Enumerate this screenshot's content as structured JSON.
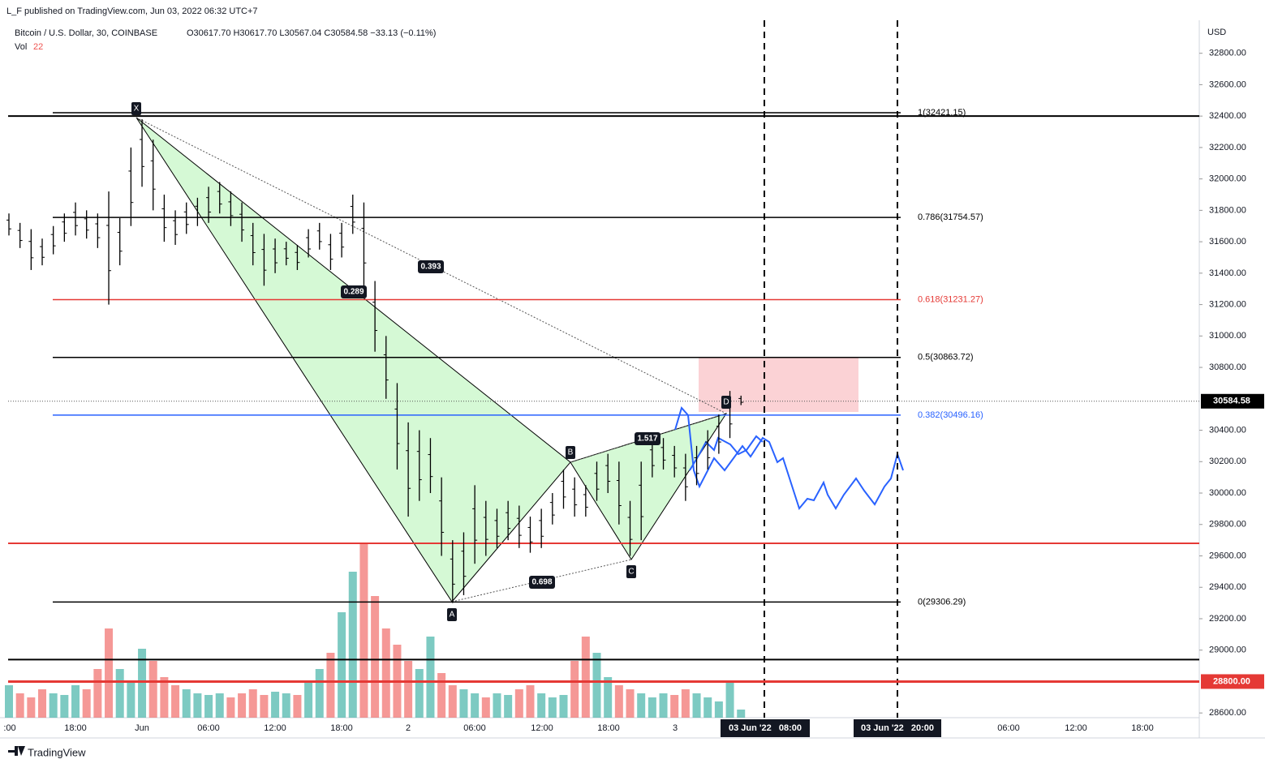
{
  "header": {
    "published": "L_F published on TradingView.com, Jun 03, 2022 06:32 UTC+7",
    "brand": "TradingView"
  },
  "legend": {
    "symbol": "Bitcoin / U.S. Dollar, 30, COINBASE",
    "ohlc": "O30617.70 H30617.70 L30567.04 C30584.58 −33.13 (−0.11%)",
    "vol_label": "Vol",
    "vol_value": "22"
  },
  "chart_data": {
    "type": "ohlc-bars",
    "currency": "USD",
    "ylim": [
      28570,
      33010
    ],
    "yticks": [
      {
        "value": 28600,
        "label": "28600.00"
      },
      {
        "value": 29000,
        "label": "29000.00"
      },
      {
        "value": 29200,
        "label": "29200.00"
      },
      {
        "value": 29400,
        "label": "29400.00"
      },
      {
        "value": 29600,
        "label": "29600.00"
      },
      {
        "value": 29800,
        "label": "29800.00"
      },
      {
        "value": 30000,
        "label": "30000.00"
      },
      {
        "value": 30200,
        "label": "30200.00"
      },
      {
        "value": 30400,
        "label": "30400.00"
      },
      {
        "value": 30800,
        "label": "30800.00"
      },
      {
        "value": 31000,
        "label": "31000.00"
      },
      {
        "value": 31200,
        "label": "31200.00"
      },
      {
        "value": 31400,
        "label": "31400.00"
      },
      {
        "value": 31600,
        "label": "31600.00"
      },
      {
        "value": 31800,
        "label": "31800.00"
      },
      {
        "value": 32000,
        "label": "32000.00"
      },
      {
        "value": 32200,
        "label": "32200.00"
      },
      {
        "value": 32400,
        "label": "32400.00"
      },
      {
        "value": 32600,
        "label": "32600.00"
      },
      {
        "value": 32800,
        "label": "32800.00"
      }
    ],
    "x_tick_labels": [
      ":00",
      "18:00",
      "Jun",
      "06:00",
      "12:00",
      "18:00",
      "2",
      "06:00",
      "12:00",
      "18:00",
      "3",
      "06:00",
      "12:00",
      "18:00"
    ],
    "highlighted_times": [
      "03 Jun '22   08:00",
      "03 Jun '22   20:00"
    ],
    "bar_color": "#000000",
    "up_color": "#26a69a",
    "down_color": "#ef5350",
    "highs": [
      31780,
      31720,
      31680,
      31620,
      31700,
      31780,
      31850,
      31800,
      31780,
      31920,
      31750,
      32200,
      32380,
      32250,
      31900,
      31800,
      31850,
      31880,
      31950,
      31980,
      31920,
      31850,
      31720,
      31650,
      31620,
      31600,
      31580,
      31680,
      31720,
      31650,
      31720,
      31900,
      31850,
      31350,
      31000,
      30700,
      30450,
      30400,
      30350,
      30100,
      29700,
      29750,
      30050,
      29950,
      29900,
      29950,
      29920,
      29850,
      29900,
      30000,
      30150,
      30100,
      30050,
      30200,
      30250,
      30200,
      29950,
      30200,
      30350,
      30350,
      30300,
      30250,
      30300,
      30400,
      30500,
      30650,
      30620
    ],
    "lows": [
      31640,
      31560,
      31420,
      31450,
      31520,
      31600,
      31640,
      31620,
      31560,
      31200,
      31450,
      31700,
      31950,
      31800,
      31600,
      31580,
      31650,
      31700,
      31720,
      31780,
      31700,
      31600,
      31450,
      31320,
      31400,
      31450,
      31420,
      31500,
      31550,
      31420,
      31500,
      31650,
      31300,
      30900,
      30600,
      30150,
      29850,
      29950,
      30000,
      29600,
      29300,
      29350,
      29550,
      29600,
      29650,
      29700,
      29650,
      29620,
      29650,
      29800,
      29900,
      29850,
      29850,
      29950,
      30000,
      29800,
      29600,
      29700,
      30100,
      30150,
      30100,
      29950,
      30050,
      30150,
      30250,
      30350,
      30560
    ],
    "volumes": [
      40,
      30,
      25,
      35,
      30,
      28,
      40,
      35,
      60,
      110,
      60,
      45,
      85,
      70,
      50,
      40,
      35,
      30,
      28,
      30,
      25,
      30,
      35,
      28,
      32,
      30,
      28,
      45,
      60,
      80,
      130,
      180,
      215,
      150,
      110,
      90,
      70,
      60,
      100,
      55,
      40,
      35,
      30,
      25,
      30,
      28,
      35,
      40,
      30,
      25,
      28,
      70,
      100,
      80,
      50,
      40,
      35,
      30,
      25,
      30,
      28,
      35,
      30,
      25,
      20,
      45,
      10
    ],
    "current_price": {
      "value": 30584.58,
      "label": "30584.58",
      "color": "#000000"
    },
    "horizontal_lines": [
      {
        "price": 32400,
        "color": "#000000"
      },
      {
        "price": 29680,
        "color": "#e53935"
      },
      {
        "price": 28940,
        "color": "#000000"
      },
      {
        "price": 28800,
        "color": "#e53935",
        "label": "28800.00"
      }
    ],
    "fib_levels": [
      {
        "price": 32421.15,
        "label": "1(32421.15)",
        "color": "#000000"
      },
      {
        "price": 31754.57,
        "label": "0.786(31754.57)",
        "color": "#000000"
      },
      {
        "price": 31231.27,
        "label": "0.618(31231.27)",
        "color": "#e53935"
      },
      {
        "price": 30863.72,
        "label": "0.5(30863.72)",
        "color": "#000000"
      },
      {
        "price": 30496.16,
        "label": "0.382(30496.16)",
        "color": "#2962ff"
      },
      {
        "price": 29306.29,
        "label": "0(29306.29)",
        "color": "#000000"
      }
    ],
    "pattern_points": [
      "X",
      "A",
      "B",
      "C",
      "D"
    ],
    "pattern_ratios": [
      "0.393",
      "0.289",
      "1.517",
      "0.698"
    ]
  }
}
